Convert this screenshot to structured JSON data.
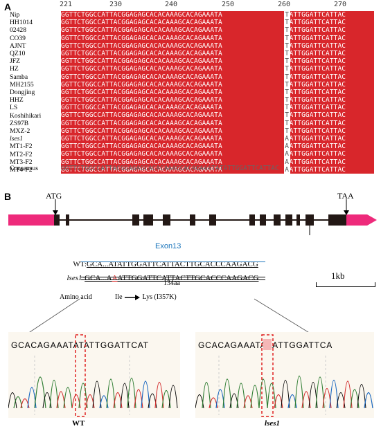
{
  "panel_a": {
    "label": "A",
    "ruler_ticks": [
      "221",
      "230",
      "240",
      "250",
      "260",
      "270"
    ],
    "rows": [
      {
        "name": "Nip",
        "left": "GGTTCTGGCCATTACGGAGAGCACACAAAGCACAGAAATA",
        "var": "T",
        "right": "ATTGGATTCATTAC"
      },
      {
        "name": "HH1014",
        "left": "GGTTCTGGCCATTACGGAGAGCACACAAAGCACAGAAATA",
        "var": "T",
        "right": "ATTGGATTCATTAC"
      },
      {
        "name": "02428",
        "left": "GGTTCTGGCCATTACGGAGAGCACACAAAGCACAGAAATA",
        "var": "T",
        "right": "ATTGGATTCATTAC"
      },
      {
        "name": "CO39",
        "left": "GGTTCTGGCCATTACGGAGAGCACACAAAGCACAGAAATA",
        "var": "T",
        "right": "ATTGGATTCATTAC"
      },
      {
        "name": "AJNT",
        "left": "GGTTCTGGCCATTACGGAGAGCACACAAAGCACAGAAATA",
        "var": "T",
        "right": "ATTGGATTCATTAC"
      },
      {
        "name": "QZ10",
        "left": "GGTTCTGGCCATTACGGAGAGCACACAAAGCACAGAAATA",
        "var": "T",
        "right": "ATTGGATTCATTAC"
      },
      {
        "name": "JFZ",
        "left": "GGTTCTGGCCATTACGGAGAGCACACAAAGCACAGAAATA",
        "var": "T",
        "right": "ATTGGATTCATTAC"
      },
      {
        "name": "HZ",
        "left": "GGTTCTGGCCATTACGGAGAGCACACAAAGCACAGAAATA",
        "var": "T",
        "right": "ATTGGATTCATTAC"
      },
      {
        "name": "Samba",
        "left": "GGTTCTGGCCATTACGGAGAGCACACAAAGCACAGAAATA",
        "var": "T",
        "right": "ATTGGATTCATTAC"
      },
      {
        "name": "MH2155",
        "left": "GGTTCTGGCCATTACGGAGAGCACACAAAGCACAGAAATA",
        "var": "T",
        "right": "ATTGGATTCATTAC"
      },
      {
        "name": "Dongjing",
        "left": "GGTTCTGGCCATTACGGAGAGCACACAAAGCACAGAAATA",
        "var": "T",
        "right": "ATTGGATTCATTAC"
      },
      {
        "name": "HHZ",
        "left": "GGTTCTGGCCATTACGGAGAGCACACAAAGCACAGAAATA",
        "var": "T",
        "right": "ATTGGATTCATTAC"
      },
      {
        "name": "LS",
        "left": "GGTTCTGGCCATTACGGAGAGCACACAAAGCACAGAAATA",
        "var": "T",
        "right": "ATTGGATTCATTAC"
      },
      {
        "name": "Koshihikari",
        "left": "GGTTCTGGCCATTACGGAGAGCACACAAAGCACAGAAATA",
        "var": "T",
        "right": "ATTGGATTCATTAC"
      },
      {
        "name": "ZS97B",
        "left": "GGTTCTGGCCATTACGGAGAGCACACAAAGCACAGAAATA",
        "var": "T",
        "right": "ATTGGATTCATTAC"
      },
      {
        "name": "MXZ-2",
        "left": "GGTTCTGGCCATTACGGAGAGCACACAAAGCACAGAAATA",
        "var": "T",
        "right": "ATTGGATTCATTAC"
      },
      {
        "name": "lses1",
        "left": "GGTTCTGGCCATTACGGAGAGCACACAAAGCACAGAAATA",
        "var": "A",
        "right": "ATTGGATTCATTAC"
      },
      {
        "name": "MT1-F2",
        "left": "GGTTCTGGCCATTACGGAGAGCACACAAAGCACAGAAATA",
        "var": "A",
        "right": "ATTGGATTCATTAC"
      },
      {
        "name": "MT2-F2",
        "left": "GGTTCTGGCCATTACGGAGAGCACACAAAGCACAGAAATA",
        "var": "A",
        "right": "ATTGGATTCATTAC"
      },
      {
        "name": "MT3-F2",
        "left": "GGTTCTGGCCATTACGGAGAGCACACAAAGCACAGAAATA",
        "var": "A",
        "right": "ATTGGATTCATTAC"
      },
      {
        "name": "MT4-F2",
        "left": "GGTTCTGGCCATTACGGAGAGCACACAAAGCACAGAAATA",
        "var": "A",
        "right": "ATTGGATTCATTAC"
      }
    ],
    "consensus_label": "Consensus",
    "consensus_seq": "GGTTCTGGCCATTACGGAGAGCACACAAAGCACAGAAATATATTGGATTCATTAC"
  },
  "panel_b": {
    "label": "B",
    "start_codon": "ATG",
    "stop_codon": "TAA",
    "exon_label": "Exon13",
    "wt_label": "WT:",
    "wt_seq": "GCA...ATATTGGATTCATTACTTGCACCCAAGACG",
    "mut_label": "lses1:",
    "mut_seq_before": "GCA...A",
    "mut_seq_highlight": "A",
    "mut_seq_after": "ATTGGATTCATTACTTGCACCCAAGACG",
    "aa_count": "134aa",
    "scale_label": "1kb",
    "amino_acid_label": "Amino acid",
    "aa_from": "Ile",
    "aa_to": "Lys",
    "aa_change": "(I357K)",
    "wt_chrom_seq": "GCACAGAAATATATTGGATTCAT",
    "mut_chrom_seq": "GCACAGAAATAAATTGGATTCA",
    "wt_chrom_label": "WT",
    "mut_chrom_label": "lses1",
    "colors": {
      "utr": "#ee2a7b",
      "exon": "#231815",
      "alignment": "#d8262b",
      "exon_label": "#1b75bb",
      "mutation": "#e02020"
    }
  }
}
